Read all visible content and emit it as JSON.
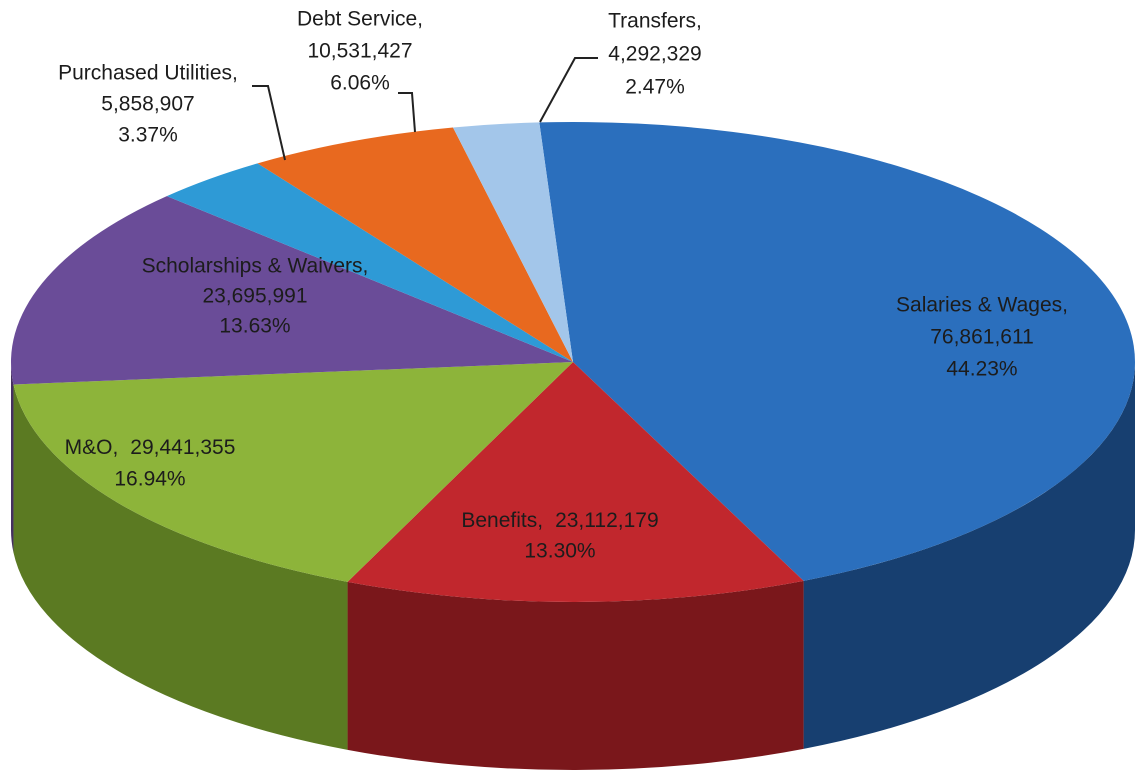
{
  "chart_data": {
    "type": "pie3d",
    "categories": [
      "Salaries & Wages,",
      "Benefits,",
      "M&O,",
      "Scholarships & Waivers,",
      "Purchased Utilities,",
      "Debt Service,",
      "Transfers,"
    ],
    "values": [
      76861611,
      23112179,
      29441355,
      23695991,
      5858907,
      10531427,
      4292329
    ],
    "value_labels": [
      "76,861,611",
      "23,112,179",
      "29,441,355",
      "23,695,991",
      "5,858,907",
      "10,531,427",
      "4,292,329"
    ],
    "percent_labels": [
      "44.23%",
      "13.30%",
      "16.94%",
      "13.63%",
      "3.37%",
      "6.06%",
      "2.47%"
    ],
    "colors": [
      "#2b6fbd",
      "#c1272d",
      "#8db43a",
      "#6a4c98",
      "#2e9ad6",
      "#e8691f",
      "#a3c6ea"
    ],
    "side_colors": [
      "#173f70",
      "#7a171b",
      "#5b7a22",
      "#45305f",
      "#1b628a",
      "#a04612",
      "#6d8aa8"
    ]
  }
}
